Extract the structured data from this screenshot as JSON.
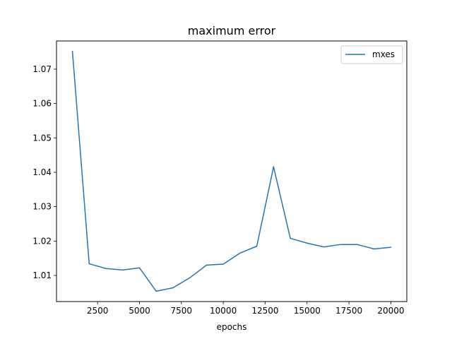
{
  "chart_data": {
    "type": "line",
    "title": "maximum error",
    "xlabel": "epochs",
    "ylabel": "",
    "xlim": [
      50,
      20950
    ],
    "ylim": [
      1.0024,
      1.0782
    ],
    "xticks": [
      2500,
      5000,
      7500,
      10000,
      12500,
      15000,
      17500,
      20000
    ],
    "yticks": [
      1.01,
      1.02,
      1.03,
      1.04,
      1.05,
      1.06,
      1.07
    ],
    "ytick_labels": [
      "1.01",
      "1.02",
      "1.03",
      "1.04",
      "1.05",
      "1.06",
      "1.07"
    ],
    "grid": false,
    "legend_position": "top-right",
    "series": [
      {
        "name": "mxes",
        "color": "#1f77b4",
        "x": [
          1000,
          2000,
          3000,
          4000,
          5000,
          6000,
          7000,
          8000,
          9000,
          10000,
          11000,
          12000,
          13000,
          14000,
          15000,
          16000,
          17000,
          18000,
          19000,
          20000
        ],
        "y": [
          1.0752,
          1.0134,
          1.012,
          1.0116,
          1.0122,
          1.0054,
          1.0064,
          1.0093,
          1.013,
          1.0133,
          1.0165,
          1.0185,
          1.0416,
          1.0208,
          1.0194,
          1.0183,
          1.019,
          1.019,
          1.0177,
          1.0182
        ]
      }
    ]
  }
}
